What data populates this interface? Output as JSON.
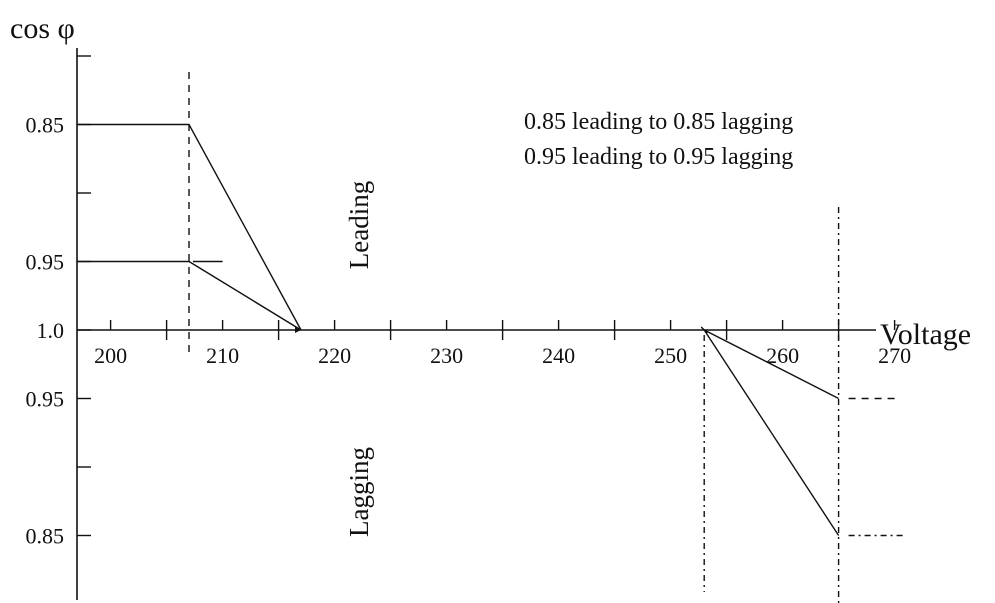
{
  "chart_data": {
    "type": "line",
    "title": "",
    "ylabel": "cos φ",
    "xlabel": "Voltage",
    "xlim": [
      197,
      272
    ],
    "x_ticks": [
      200,
      210,
      220,
      230,
      240,
      250,
      260,
      270
    ],
    "y_ticks_leading": [
      {
        "label": "0.85",
        "value": 0.85
      },
      {
        "label": "0.95",
        "value": 0.95
      },
      {
        "label": "1.0",
        "value": 1.0
      }
    ],
    "y_ticks_lagging": [
      {
        "label": "0.95",
        "value": 0.95
      },
      {
        "label": "0.85",
        "value": 0.85
      }
    ],
    "zones": {
      "upper": "Leading",
      "lower": "Lagging"
    },
    "annotations": [
      "0.85 leading to 0.85 lagging",
      "0.95 leading to 0.95 lagging"
    ],
    "series": [
      {
        "points": [
          {
            "x": 197,
            "y": 0.85,
            "side": "leading"
          },
          {
            "x": 207,
            "y": 0.85,
            "side": "leading"
          },
          {
            "x": 217,
            "y": 1.0,
            "side": "leading"
          }
        ]
      },
      {
        "points": [
          {
            "x": 197,
            "y": 0.95,
            "side": "leading"
          },
          {
            "x": 207,
            "y": 0.95,
            "side": "leading"
          },
          {
            "x": 217,
            "y": 1.0,
            "side": "leading"
          }
        ]
      },
      {
        "points": [
          {
            "x": 253,
            "y": 1.0,
            "side": "lagging"
          },
          {
            "x": 265,
            "y": 0.95,
            "side": "lagging"
          }
        ]
      },
      {
        "points": [
          {
            "x": 253,
            "y": 1.0,
            "side": "lagging"
          },
          {
            "x": 265,
            "y": 0.85,
            "side": "lagging"
          }
        ]
      }
    ],
    "reference_voltages": [
      207,
      253,
      265
    ],
    "grid": false,
    "legend": "none"
  }
}
